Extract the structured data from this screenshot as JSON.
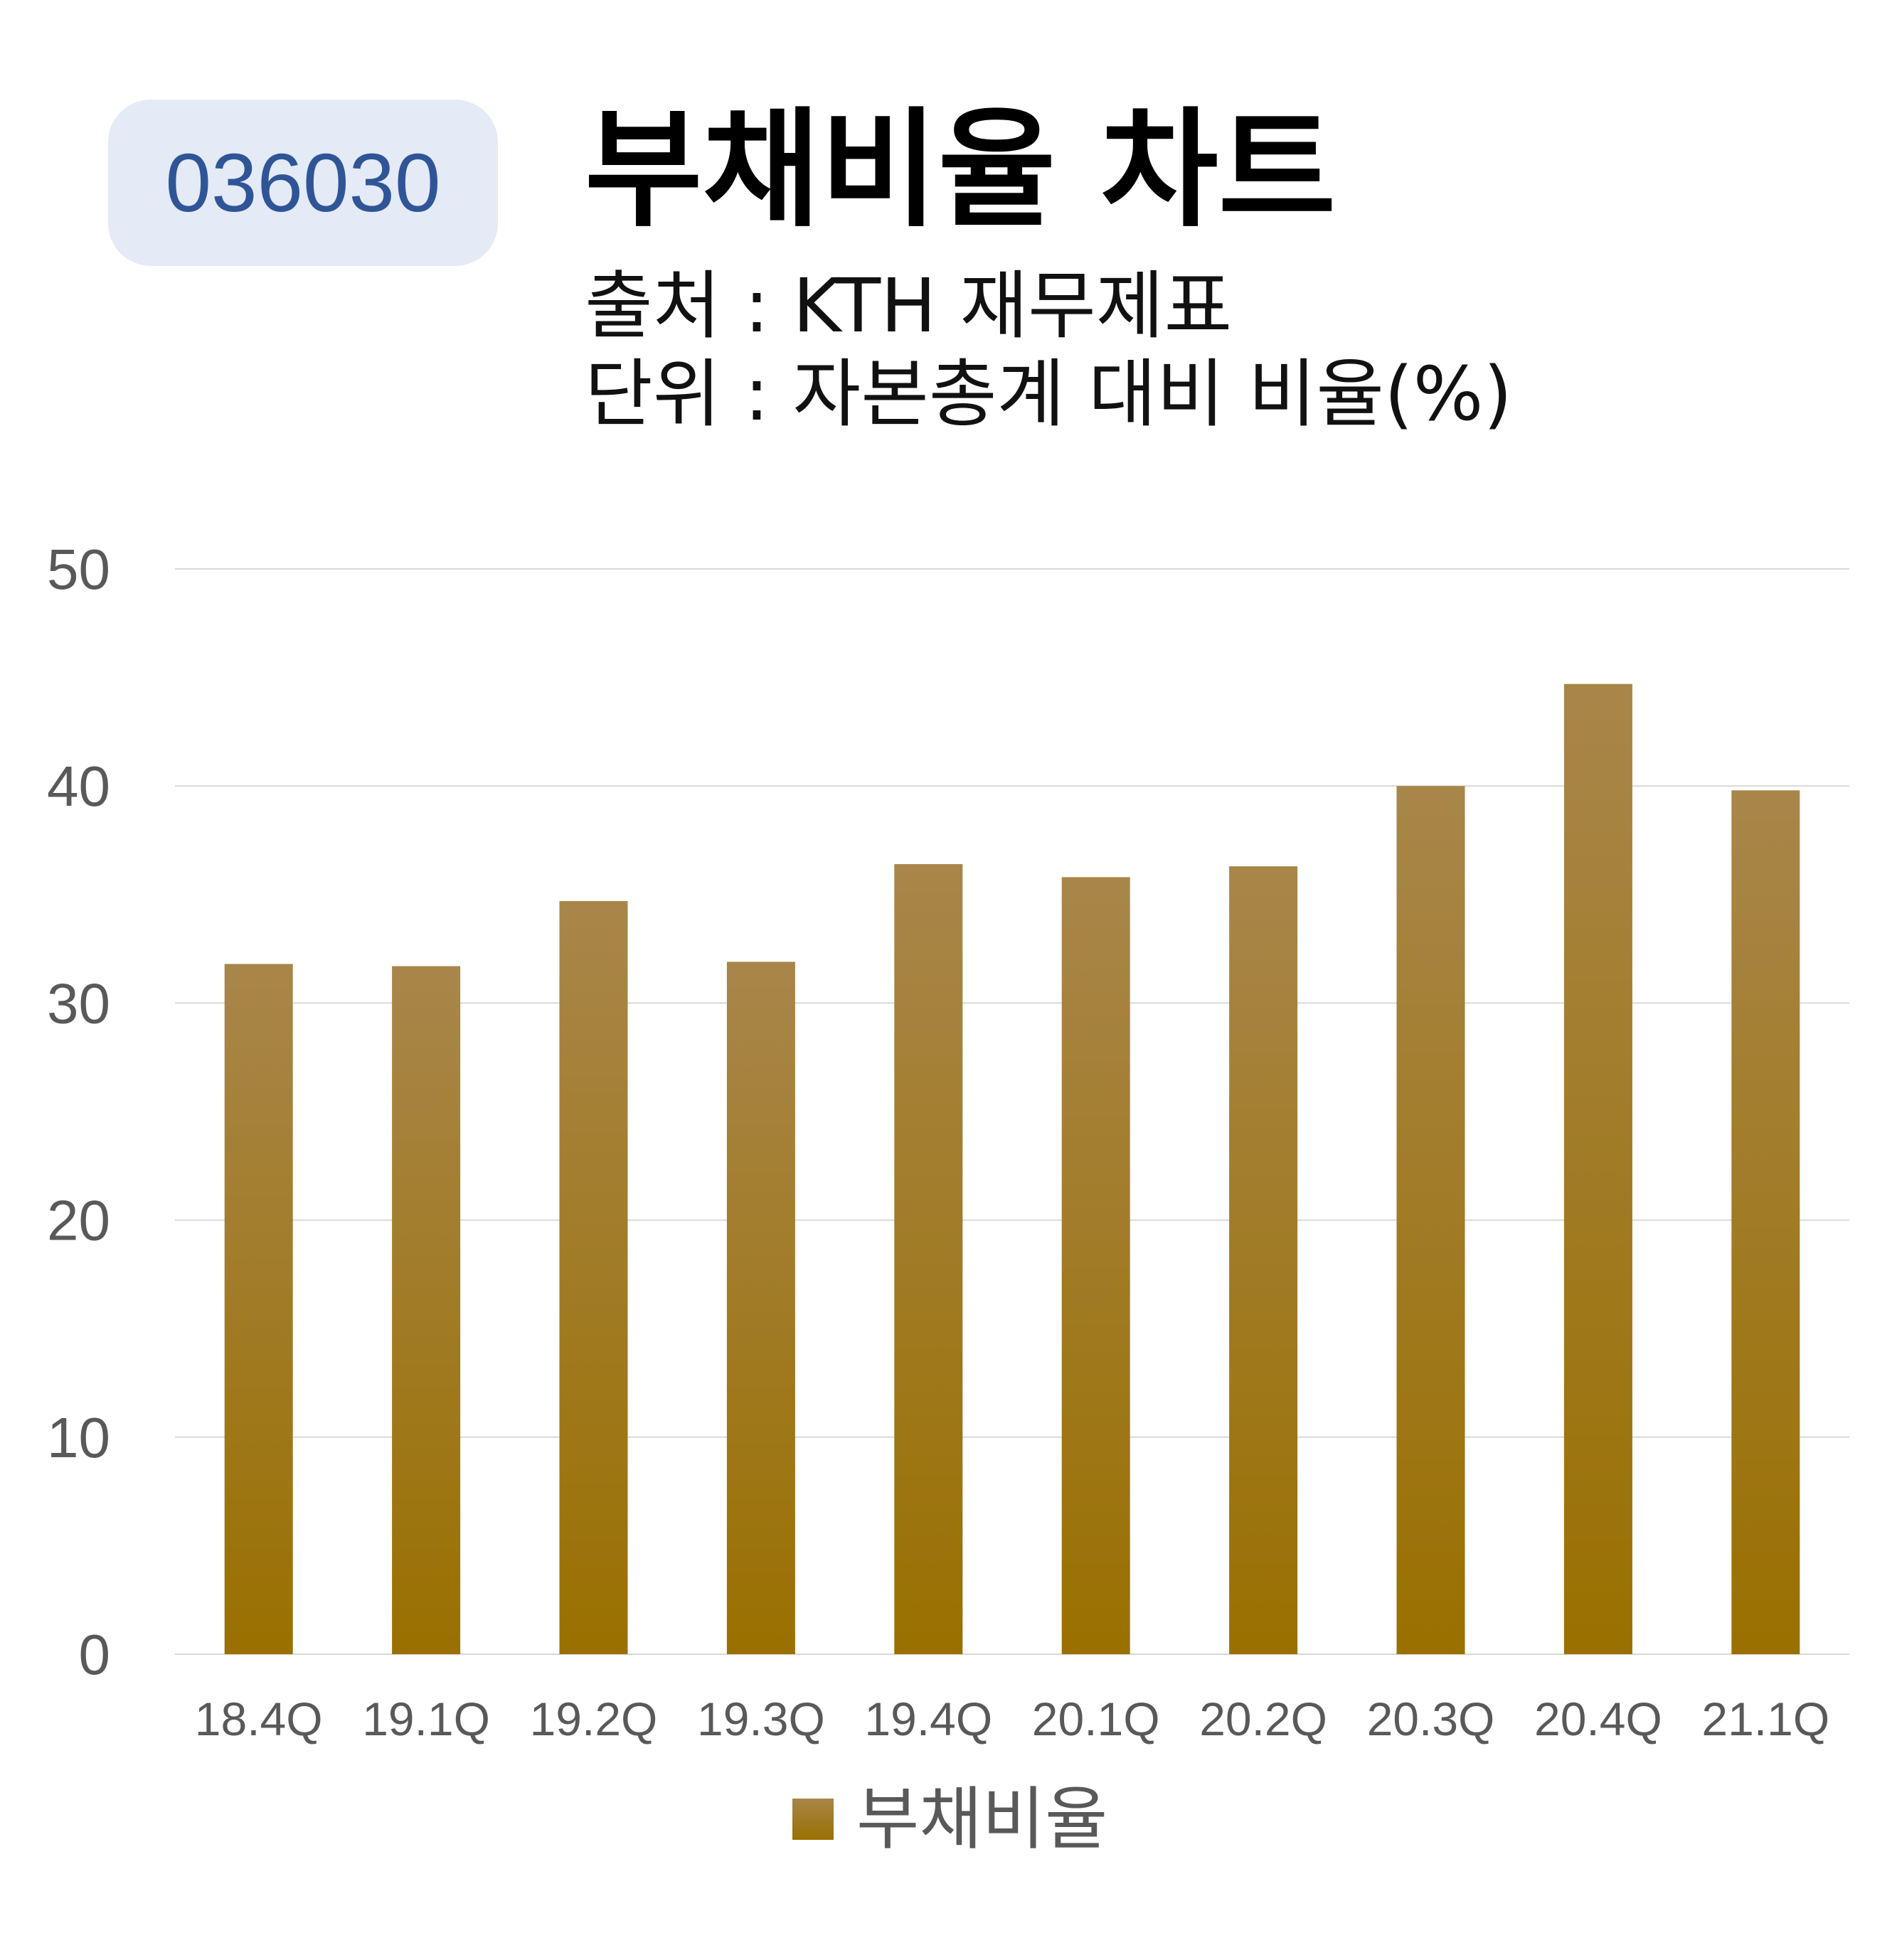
{
  "header": {
    "code": "036030",
    "title": "부채비율 차트",
    "source": "출처 : KTH 재무제표",
    "unit": "단위 : 자본총계 대비 비율(%)"
  },
  "colors": {
    "badge_bg": "#e4eaf6",
    "badge_text": "#2f5597",
    "bar_top": "#a8864a",
    "bar_bottom": "#9a7000",
    "grid": "#d9d9d9",
    "axis_text": "#595959"
  },
  "chart_data": {
    "type": "bar",
    "categories": [
      "18.4Q",
      "19.1Q",
      "19.2Q",
      "19.3Q",
      "19.4Q",
      "20.1Q",
      "20.2Q",
      "20.3Q",
      "20.4Q",
      "21.1Q"
    ],
    "series": [
      {
        "name": "부채비율",
        "values": [
          31.8,
          31.7,
          34.7,
          31.9,
          36.4,
          35.8,
          36.3,
          40.0,
          44.7,
          39.8
        ]
      }
    ],
    "yticks": [
      0,
      10,
      20,
      30,
      40,
      50
    ],
    "ylim": [
      0,
      50
    ],
    "grid": true,
    "legend_position": "bottom"
  }
}
